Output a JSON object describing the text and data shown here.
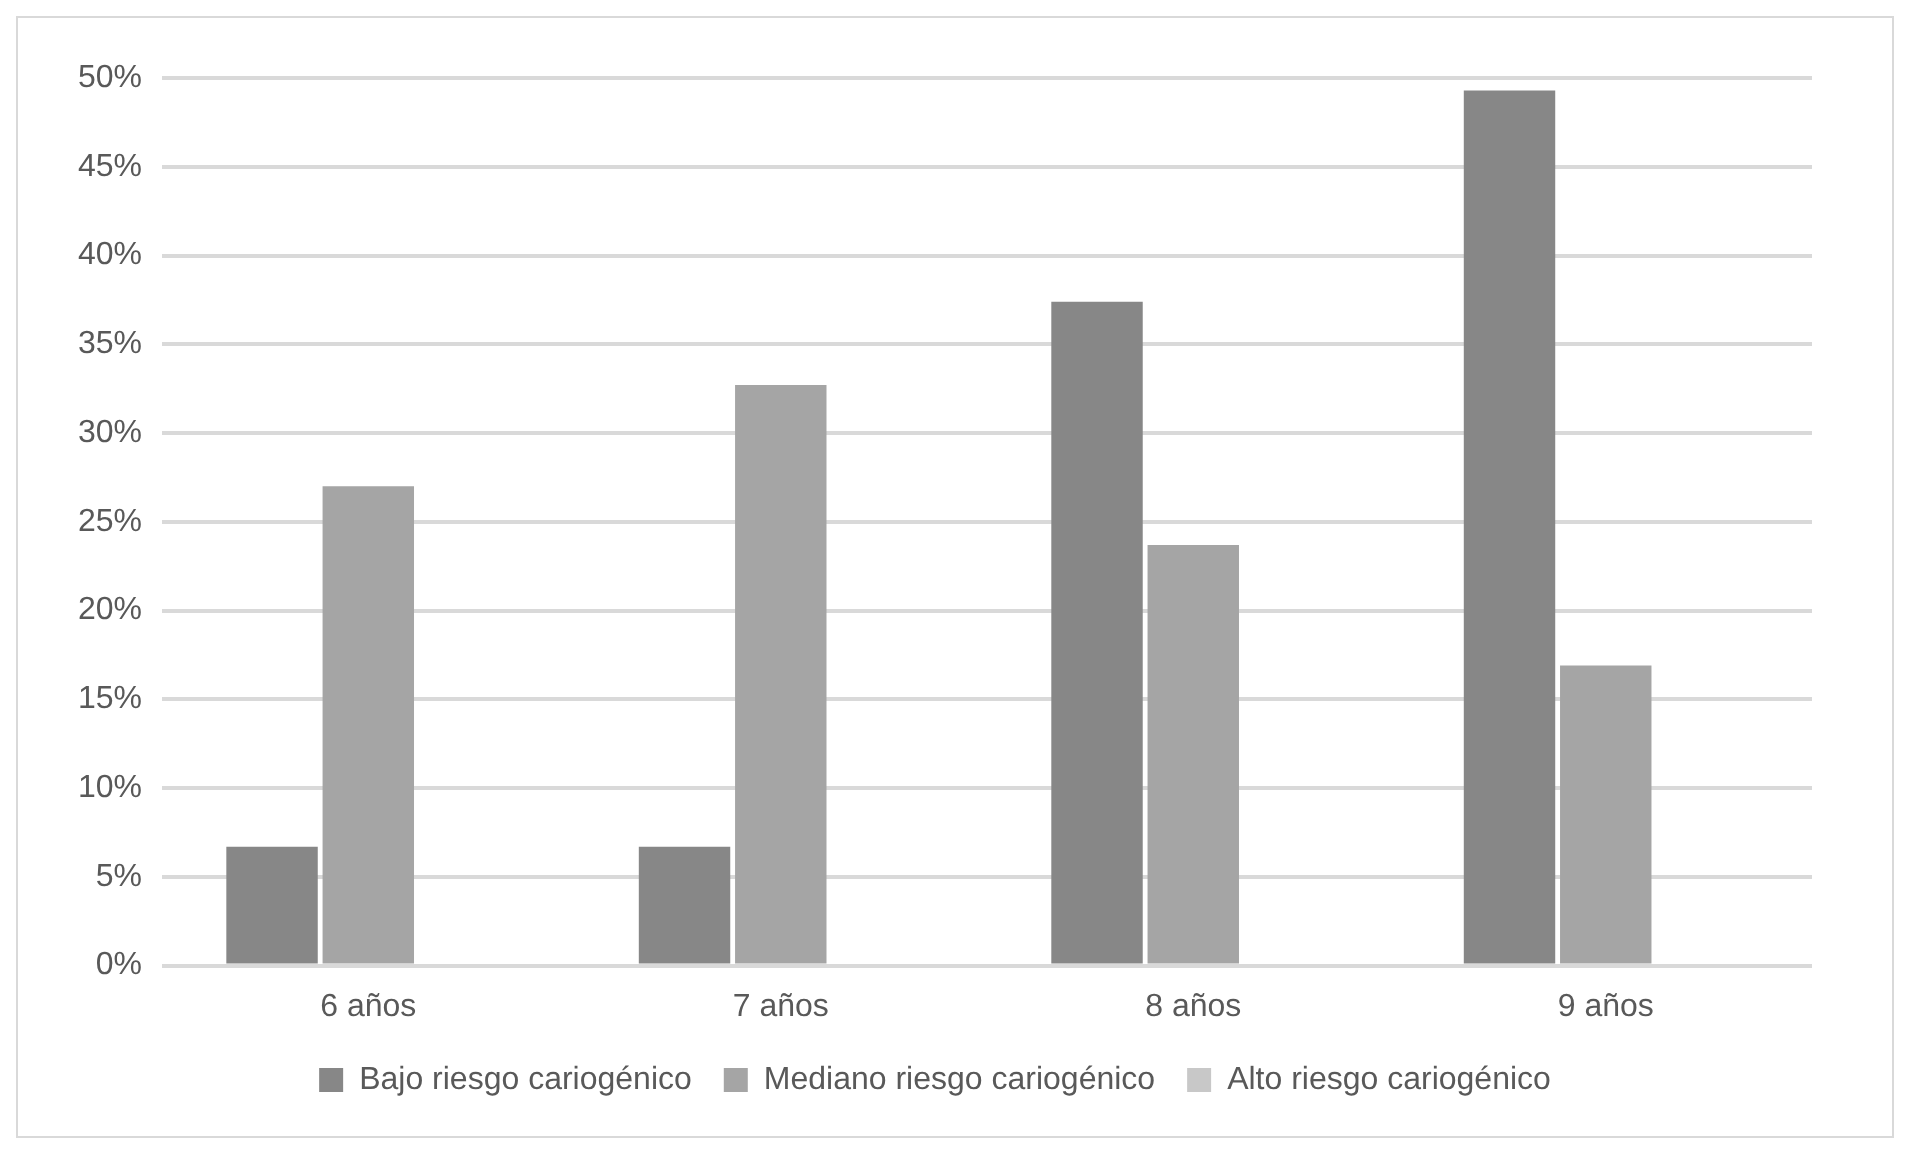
{
  "chart_data": {
    "type": "bar",
    "categories": [
      "6 años",
      "7 años",
      "8 años",
      "9 años"
    ],
    "series": [
      {
        "name": "Bajo riesgo cariogénico",
        "color": "#878787",
        "values": [
          6.7,
          6.7,
          37.4,
          49.3
        ]
      },
      {
        "name": "Mediano riesgo cariogénico",
        "color": "#a5a5a5",
        "values": [
          27,
          32.7,
          23.7,
          16.9
        ]
      },
      {
        "name": "Alto riesgo cariogénico",
        "color": "#c8c8c8",
        "values": [
          0,
          0,
          0,
          0
        ]
      }
    ],
    "ylim": [
      0,
      50
    ],
    "yticks": [
      {
        "value": 0,
        "label": "0%"
      },
      {
        "value": 5,
        "label": "5%"
      },
      {
        "value": 10,
        "label": "10%"
      },
      {
        "value": 15,
        "label": "15%"
      },
      {
        "value": 20,
        "label": "20%"
      },
      {
        "value": 25,
        "label": "25%"
      },
      {
        "value": 30,
        "label": "30%"
      },
      {
        "value": 35,
        "label": "35%"
      },
      {
        "value": 40,
        "label": "40%"
      },
      {
        "value": 45,
        "label": "45%"
      },
      {
        "value": 50,
        "label": "50%"
      }
    ],
    "grid": "y",
    "legend": "bottom"
  }
}
